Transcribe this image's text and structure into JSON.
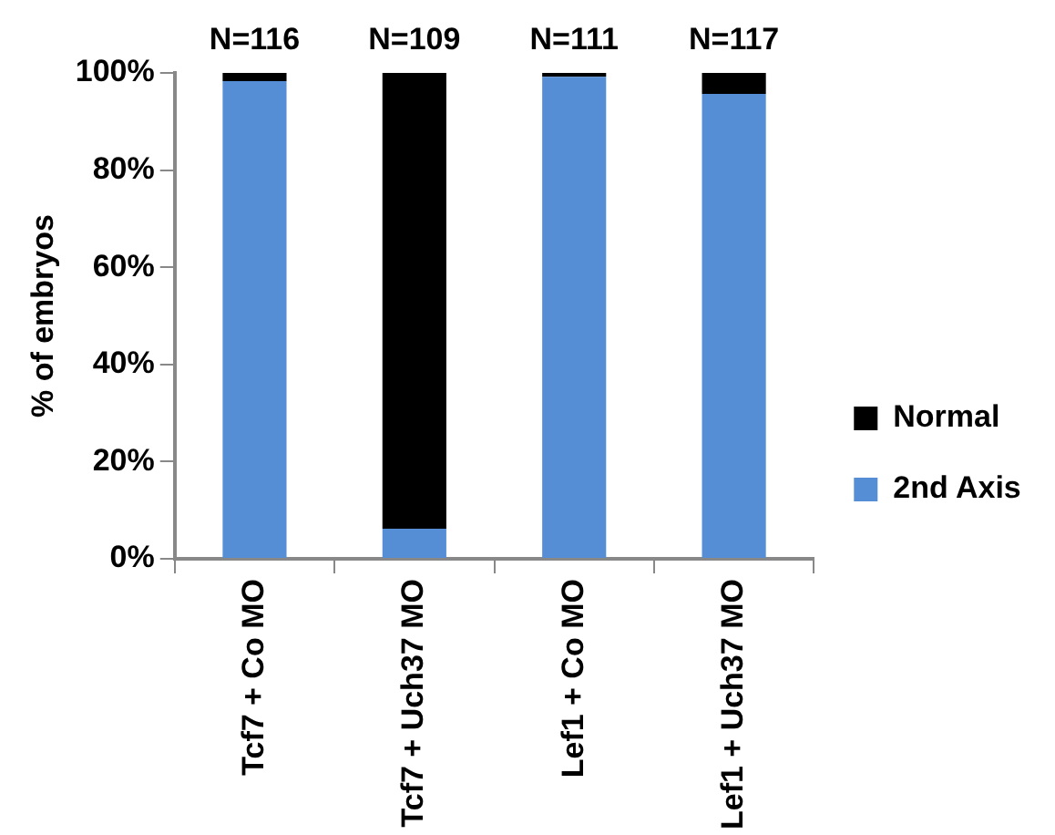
{
  "chart_data": {
    "type": "bar",
    "stacked": true,
    "ylabel": "% of embryos",
    "categories": [
      "Tcf7 + Co MO",
      "Tcf7 + Uch37 MO",
      "Lef1 + Co MO",
      "Lef1 + Uch37 MO"
    ],
    "series": [
      {
        "name": "2nd Axis",
        "color": "#558ed5",
        "values": [
          98.3,
          6.2,
          99.2,
          95.7
        ]
      },
      {
        "name": "Normal",
        "color": "#000000",
        "values": [
          1.7,
          93.8,
          0.8,
          4.3
        ]
      }
    ],
    "ylim": [
      0,
      100
    ],
    "yticks": [
      {
        "value": 0,
        "label": "0%"
      },
      {
        "value": 20,
        "label": "20%"
      },
      {
        "value": 40,
        "label": "40%"
      },
      {
        "value": 60,
        "label": "60%"
      },
      {
        "value": 80,
        "label": "80%"
      },
      {
        "value": 100,
        "label": "100%"
      }
    ],
    "grid": false,
    "legend": "right",
    "annotations": [
      {
        "text": "N=116",
        "x": "Tcf7 + Co MO",
        "y": 100
      },
      {
        "text": "N=109",
        "x": "Tcf7 + Uch37 MO",
        "y": 100
      },
      {
        "text": "N=111",
        "x": "Lef1 + Co MO",
        "y": 100
      },
      {
        "text": "N=117",
        "x": "Lef1 + Uch37 MO",
        "y": 100
      }
    ]
  }
}
